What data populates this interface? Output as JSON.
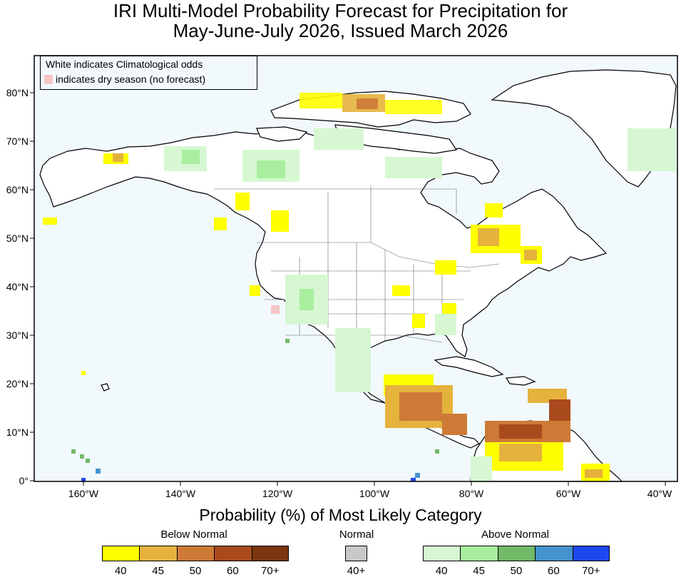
{
  "title": {
    "line1": "IRI Multi-Model Probability Forecast for Precipitation for",
    "line2": "May-June-July 2026, Issued March 2026"
  },
  "map_legend": {
    "line1": "White indicates Climatological odds",
    "line2": "indicates dry season (no forecast)",
    "dry_color": "#f5c4c4"
  },
  "axes": {
    "latitudes": [
      "80°N",
      "70°N",
      "60°N",
      "50°N",
      "40°N",
      "30°N",
      "20°N",
      "10°N",
      "0°"
    ],
    "longitudes": [
      "160°W",
      "140°W",
      "120°W",
      "100°W",
      "80°W",
      "60°W",
      "40°W"
    ]
  },
  "colorbar": {
    "title": "Probability (%) of Most Likely Category",
    "below": {
      "label": "Below Normal",
      "colors": [
        "#ffff00",
        "#e5b23c",
        "#cd7a36",
        "#a94a1d",
        "#7a360f"
      ],
      "ticks": [
        "40",
        "45",
        "50",
        "60",
        "70+"
      ]
    },
    "normal": {
      "label": "Normal",
      "colors": [
        "#c8c8c8"
      ],
      "ticks": [
        "40+"
      ]
    },
    "above": {
      "label": "Above Normal",
      "colors": [
        "#d6f7d2",
        "#a9ee9f",
        "#72b968",
        "#4593cd",
        "#1f47f0"
      ],
      "ticks": [
        "40",
        "45",
        "50",
        "60",
        "70+"
      ]
    }
  },
  "colors": {
    "ocean": "#f1f9fd",
    "land": "#ffffff",
    "border": "#000000"
  }
}
